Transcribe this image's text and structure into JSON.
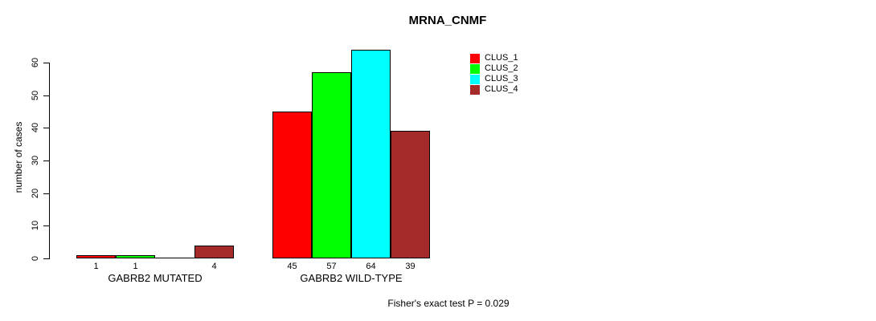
{
  "title": "MRNA_CNMF",
  "footer": "Fisher's exact test P = 0.029",
  "chart_data": {
    "type": "bar",
    "title": "MRNA_CNMF",
    "xlabel": "",
    "ylabel": "number of cases",
    "ylim": [
      0,
      60
    ],
    "yticks": [
      0,
      10,
      20,
      30,
      40,
      50,
      60
    ],
    "grid": false,
    "legend_position": "top-right",
    "legend": [
      {
        "label": "CLUS_1",
        "color": "#FF0000"
      },
      {
        "label": "CLUS_2",
        "color": "#00FF00"
      },
      {
        "label": "CLUS_3",
        "color": "#00FFFF"
      },
      {
        "label": "CLUS_4",
        "color": "#A52A2A"
      }
    ],
    "groups": [
      {
        "label": "GABRB2 MUTATED",
        "series": [
          "CLUS_1",
          "CLUS_2",
          "CLUS_3",
          "CLUS_4"
        ],
        "values": [
          1,
          1,
          0,
          4
        ],
        "bar_labels": [
          "1",
          "1",
          "",
          "4"
        ]
      },
      {
        "label": "GABRB2 WILD-TYPE",
        "series": [
          "CLUS_1",
          "CLUS_2",
          "CLUS_3",
          "CLUS_4"
        ],
        "values": [
          45,
          57,
          64,
          39
        ],
        "bar_labels": [
          "45",
          "57",
          "64",
          "39"
        ]
      }
    ],
    "annotation": "Fisher's exact test P = 0.029"
  },
  "colors": {
    "background": "#FFFFFF",
    "axis": "#000000",
    "text": "#000000"
  }
}
